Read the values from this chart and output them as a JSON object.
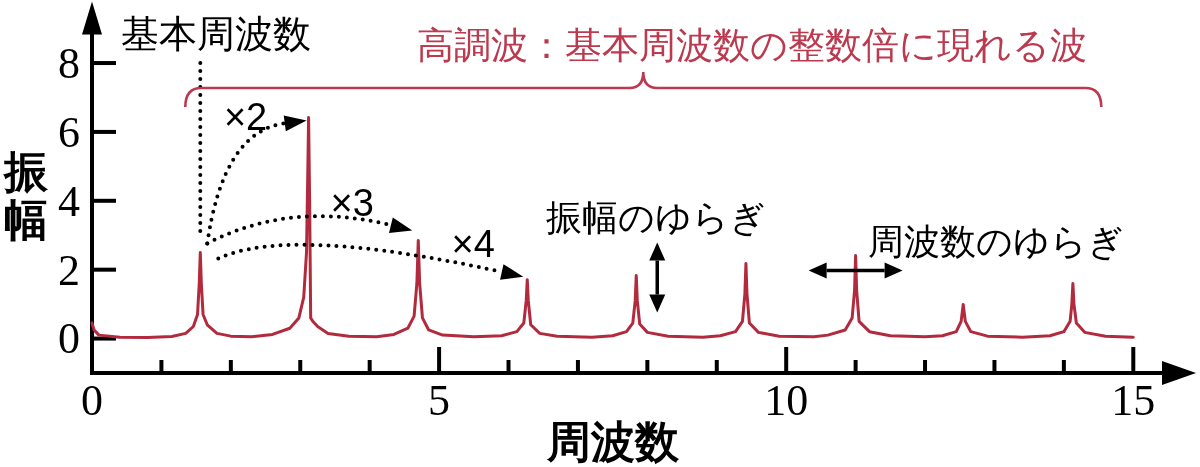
{
  "chart_data": {
    "type": "line",
    "xlabel": "周波数",
    "ylabel": "振幅",
    "x": [
      0,
      0.03,
      0.1,
      0.4,
      0.8,
      1.15,
      1.35,
      1.46,
      1.52,
      1.545,
      1.56,
      1.575,
      1.6,
      1.66,
      1.8,
      2.0,
      2.3,
      2.6,
      2.85,
      2.98,
      3.05,
      3.09,
      3.11,
      3.12,
      3.135,
      3.15,
      3.18,
      3.25,
      3.4,
      3.7,
      4.1,
      4.35,
      4.55,
      4.64,
      4.68,
      4.7,
      4.72,
      4.76,
      4.85,
      5.05,
      5.5,
      5.9,
      6.12,
      6.22,
      6.255,
      6.27,
      6.285,
      6.32,
      6.45,
      6.7,
      7.2,
      7.5,
      7.7,
      7.79,
      7.825,
      7.84,
      7.855,
      7.89,
      8.0,
      8.3,
      8.8,
      9.05,
      9.27,
      9.37,
      9.405,
      9.42,
      9.435,
      9.47,
      9.6,
      9.9,
      10.4,
      10.6,
      10.85,
      10.95,
      10.985,
      11.0,
      11.015,
      11.05,
      11.2,
      11.5,
      12.0,
      12.25,
      12.45,
      12.52,
      12.55,
      12.58,
      12.66,
      12.9,
      13.4,
      13.8,
      14.0,
      14.09,
      14.115,
      14.13,
      14.145,
      14.18,
      14.3,
      14.6,
      15.0
    ],
    "series": [
      {
        "color": "#b22a3e",
        "values": [
          0.45,
          0.25,
          0.1,
          0.04,
          0.03,
          0.06,
          0.15,
          0.35,
          0.7,
          1.6,
          2.5,
          1.6,
          0.7,
          0.4,
          0.15,
          0.07,
          0.05,
          0.12,
          0.3,
          0.6,
          1.2,
          2.5,
          5.0,
          6.42,
          4.0,
          0.6,
          0.5,
          0.35,
          0.15,
          0.07,
          0.05,
          0.12,
          0.3,
          0.65,
          1.6,
          2.85,
          1.6,
          0.6,
          0.25,
          0.1,
          0.05,
          0.08,
          0.2,
          0.45,
          1.1,
          1.71,
          1.1,
          0.4,
          0.15,
          0.07,
          0.04,
          0.08,
          0.2,
          0.45,
          1.1,
          1.83,
          1.1,
          0.42,
          0.18,
          0.07,
          0.04,
          0.08,
          0.2,
          0.5,
          1.3,
          2.18,
          1.3,
          0.45,
          0.18,
          0.07,
          0.05,
          0.1,
          0.25,
          0.6,
          1.4,
          2.41,
          1.4,
          0.5,
          0.2,
          0.08,
          0.05,
          0.08,
          0.2,
          0.5,
          0.99,
          0.5,
          0.2,
          0.07,
          0.04,
          0.08,
          0.2,
          0.5,
          1.0,
          1.6,
          1.0,
          0.45,
          0.18,
          0.07,
          0.04
        ]
      }
    ],
    "xlim": [
      0,
      15.5
    ],
    "ylim": [
      -1,
      9
    ],
    "xticks": [
      0,
      {
        "value": 1,
        "label": null
      },
      {
        "value": 2,
        "label": null
      },
      {
        "value": 3,
        "label": null
      },
      {
        "value": 4,
        "label": null
      },
      5,
      {
        "value": 6,
        "label": null
      },
      {
        "value": 7,
        "label": null
      },
      {
        "value": 8,
        "label": null
      },
      {
        "value": 9,
        "label": null
      },
      10,
      {
        "value": 11,
        "label": null
      },
      {
        "value": 12,
        "label": null
      },
      {
        "value": 13,
        "label": null
      },
      {
        "value": 14,
        "label": null
      },
      15
    ],
    "yticks": [
      0,
      2,
      4,
      6,
      8
    ],
    "ref_lines": [
      {
        "axis": "x",
        "value": 1.56,
        "label": "基本周波数",
        "line_style": "dotted",
        "color": "#000000"
      }
    ],
    "annotations": [
      "高調波：基本周波数の整数倍に現れる波",
      {
        "text": "×2",
        "x": 3.12,
        "y": 6.42
      },
      {
        "text": "×3",
        "x": 4.7,
        "y": 2.85
      },
      {
        "text": "×4",
        "x": 6.27,
        "y": 1.71
      },
      {
        "text": "振幅のゆらぎ",
        "x": 7.84,
        "y": 1.83
      },
      {
        "text": "周波数のゆらぎ",
        "x": 11.0,
        "y": 2.41
      }
    ]
  }
}
